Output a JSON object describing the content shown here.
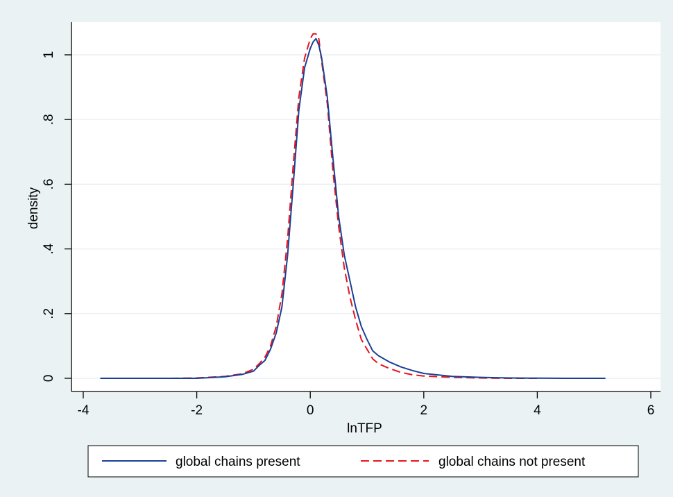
{
  "chart_data": {
    "type": "line",
    "title": "",
    "xlabel": "lnTFP",
    "ylabel": "density",
    "xlim": [
      -4,
      6
    ],
    "ylim": [
      0,
      1.1
    ],
    "x_ticks": [
      -4,
      -2,
      0,
      2,
      4,
      6
    ],
    "x_tick_labels": [
      "-4",
      "-2",
      "0",
      "2",
      "4",
      "6"
    ],
    "y_ticks": [
      0,
      0.2,
      0.4,
      0.6,
      0.8,
      1
    ],
    "y_tick_labels": [
      "0",
      ".2",
      ".4",
      ".6",
      ".8",
      "1"
    ],
    "grid": true,
    "legend_position": "bottom",
    "series": [
      {
        "name": "global chains present",
        "color": "#1a3f95",
        "dash": "solid",
        "x": [
          -3.7,
          -3.0,
          -2.5,
          -2.0,
          -1.5,
          -1.2,
          -1.0,
          -0.9,
          -0.8,
          -0.7,
          -0.6,
          -0.5,
          -0.4,
          -0.3,
          -0.2,
          -0.1,
          0.0,
          0.05,
          0.1,
          0.15,
          0.2,
          0.3,
          0.4,
          0.5,
          0.6,
          0.7,
          0.8,
          0.9,
          1.0,
          1.1,
          1.2,
          1.4,
          1.6,
          1.8,
          2.0,
          2.5,
          3.0,
          3.5,
          4.0,
          4.5,
          5.0,
          5.2
        ],
        "y": [
          0,
          0,
          0,
          0,
          0.005,
          0.012,
          0.022,
          0.04,
          0.055,
          0.09,
          0.14,
          0.22,
          0.38,
          0.6,
          0.83,
          0.96,
          1.02,
          1.04,
          1.05,
          1.03,
          0.99,
          0.87,
          0.68,
          0.5,
          0.38,
          0.3,
          0.22,
          0.16,
          0.12,
          0.085,
          0.07,
          0.05,
          0.035,
          0.024,
          0.015,
          0.006,
          0.003,
          0.001,
          0.0005,
          0,
          0,
          0
        ]
      },
      {
        "name": "global chains not present",
        "color": "#e8131a",
        "dash": "dashed",
        "x": [
          -2.9,
          -2.5,
          -2.0,
          -1.5,
          -1.2,
          -1.0,
          -0.9,
          -0.8,
          -0.7,
          -0.6,
          -0.5,
          -0.4,
          -0.3,
          -0.2,
          -0.1,
          0.0,
          0.05,
          0.1,
          0.15,
          0.2,
          0.3,
          0.4,
          0.5,
          0.6,
          0.7,
          0.8,
          0.9,
          1.0,
          1.1,
          1.2,
          1.4,
          1.6,
          1.8,
          2.0,
          2.5,
          3.0,
          3.5,
          4.0
        ],
        "y": [
          0,
          0,
          0.001,
          0.006,
          0.014,
          0.028,
          0.045,
          0.065,
          0.1,
          0.16,
          0.26,
          0.43,
          0.66,
          0.87,
          0.99,
          1.05,
          1.065,
          1.065,
          1.05,
          0.98,
          0.85,
          0.64,
          0.47,
          0.34,
          0.25,
          0.18,
          0.12,
          0.09,
          0.06,
          0.045,
          0.03,
          0.018,
          0.011,
          0.007,
          0.003,
          0.001,
          0,
          0
        ]
      }
    ]
  }
}
